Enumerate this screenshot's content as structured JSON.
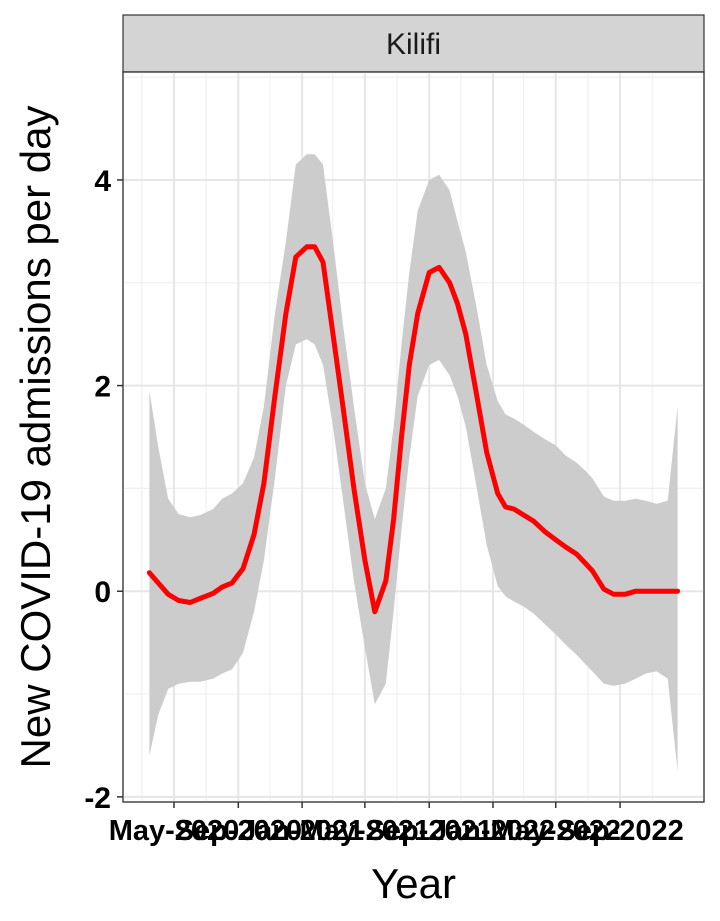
{
  "chart_data": {
    "type": "line",
    "panel_title": "Kilifi",
    "xlabel": "Year",
    "ylabel": "New COVID-19 admissions per day",
    "x_ticks": [
      "May-2020",
      "Sep-2020",
      "Jan-2021",
      "May-2021",
      "Sep-2021",
      "Jan-2022",
      "May-2022",
      "Sep-2022"
    ],
    "y_ticks": [
      -2,
      0,
      2,
      4
    ],
    "ylim": [
      -2.05,
      5.05
    ],
    "grid": true,
    "colors": {
      "line": "#ff0000",
      "ribbon": "#cccccc",
      "strip": "#d4d4d4",
      "grid": "#e6e6e6"
    },
    "series": [
      {
        "x": [
          "2020-03-15",
          "2020-04-01",
          "2020-04-20",
          "2020-05-10",
          "2020-06-01",
          "2020-06-20",
          "2020-07-15",
          "2020-08-01",
          "2020-08-20",
          "2020-09-10",
          "2020-10-01",
          "2020-10-20",
          "2020-11-10",
          "2020-12-01",
          "2020-12-20",
          "2021-01-10",
          "2021-01-25",
          "2021-02-10",
          "2021-03-01",
          "2021-03-20",
          "2021-04-10",
          "2021-05-01",
          "2021-05-20",
          "2021-06-10",
          "2021-06-25",
          "2021-07-10",
          "2021-07-25",
          "2021-08-10",
          "2021-09-01",
          "2021-09-20",
          "2021-10-10",
          "2021-10-25",
          "2021-11-10",
          "2021-12-01",
          "2021-12-20",
          "2022-01-10",
          "2022-01-25",
          "2022-02-10",
          "2022-03-01",
          "2022-03-20",
          "2022-04-10",
          "2022-05-01",
          "2022-05-20",
          "2022-06-10",
          "2022-06-25",
          "2022-07-10",
          "2022-08-01",
          "2022-08-20",
          "2022-09-10",
          "2022-10-01",
          "2022-10-20",
          "2022-11-10",
          "2022-12-01",
          "2022-12-20"
        ],
        "y": [
          0.18,
          0.08,
          -0.03,
          -0.09,
          -0.11,
          -0.07,
          -0.02,
          0.04,
          0.08,
          0.22,
          0.55,
          1.05,
          1.9,
          2.7,
          3.25,
          3.35,
          3.35,
          3.2,
          2.5,
          1.8,
          1.0,
          0.3,
          -0.2,
          0.1,
          0.7,
          1.5,
          2.2,
          2.7,
          3.1,
          3.15,
          3.0,
          2.8,
          2.5,
          1.9,
          1.35,
          0.95,
          0.82,
          0.8,
          0.74,
          0.68,
          0.58,
          0.5,
          0.43,
          0.36,
          0.28,
          0.2,
          0.02,
          -0.03,
          -0.03,
          0.0,
          0.0,
          0.0,
          0.0,
          0.0
        ],
        "y_lower": [
          -1.6,
          -1.2,
          -0.95,
          -0.9,
          -0.88,
          -0.88,
          -0.85,
          -0.8,
          -0.76,
          -0.6,
          -0.2,
          0.3,
          1.1,
          2.0,
          2.4,
          2.45,
          2.4,
          2.2,
          1.6,
          0.9,
          0.1,
          -0.55,
          -1.1,
          -0.9,
          -0.2,
          0.6,
          1.3,
          1.9,
          2.2,
          2.25,
          2.1,
          1.9,
          1.6,
          1.0,
          0.45,
          0.05,
          -0.05,
          -0.1,
          -0.15,
          -0.22,
          -0.32,
          -0.42,
          -0.52,
          -0.62,
          -0.7,
          -0.78,
          -0.9,
          -0.92,
          -0.9,
          -0.85,
          -0.8,
          -0.78,
          -0.85,
          -1.75
        ],
        "y_upper": [
          1.95,
          1.4,
          0.9,
          0.75,
          0.72,
          0.74,
          0.8,
          0.9,
          0.95,
          1.05,
          1.3,
          1.8,
          2.7,
          3.4,
          4.15,
          4.25,
          4.25,
          4.15,
          3.4,
          2.6,
          1.8,
          1.05,
          0.7,
          1.0,
          1.6,
          2.4,
          3.1,
          3.7,
          4.0,
          4.05,
          3.9,
          3.6,
          3.3,
          2.75,
          2.2,
          1.85,
          1.72,
          1.68,
          1.62,
          1.55,
          1.48,
          1.42,
          1.32,
          1.25,
          1.18,
          1.1,
          0.92,
          0.88,
          0.88,
          0.9,
          0.88,
          0.85,
          0.88,
          1.8
        ]
      }
    ]
  }
}
